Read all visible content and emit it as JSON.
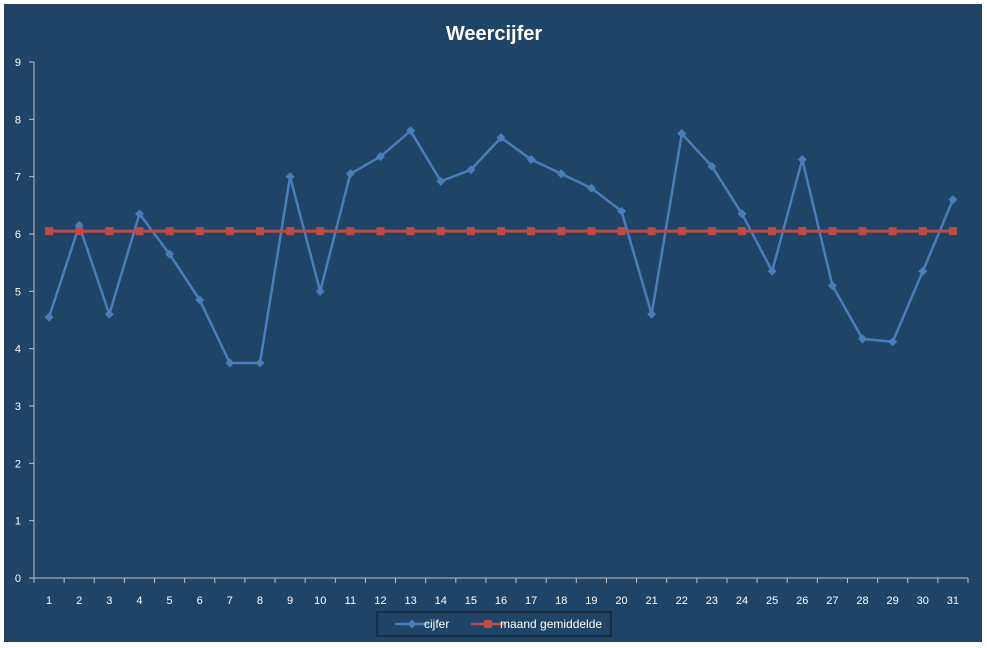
{
  "chart_data": {
    "type": "line",
    "title": "Weercijfer",
    "xlabel": "",
    "ylabel": "",
    "categories": [
      "1",
      "2",
      "3",
      "4",
      "5",
      "6",
      "7",
      "8",
      "9",
      "10",
      "11",
      "12",
      "13",
      "14",
      "15",
      "16",
      "17",
      "18",
      "19",
      "20",
      "21",
      "22",
      "23",
      "24",
      "25",
      "26",
      "27",
      "28",
      "29",
      "30",
      "31"
    ],
    "ylim": [
      0,
      9
    ],
    "yticks": [
      "0",
      "1",
      "2",
      "3",
      "4",
      "5",
      "6",
      "7",
      "8",
      "9"
    ],
    "grid": false,
    "legend_position": "bottom",
    "series": [
      {
        "name": "cijfer",
        "color": "#4a7ebb",
        "marker": "diamond",
        "values": [
          4.55,
          6.15,
          4.6,
          6.35,
          5.65,
          4.85,
          3.75,
          3.75,
          7.0,
          5.0,
          7.05,
          7.35,
          7.8,
          6.92,
          7.12,
          7.68,
          7.3,
          7.05,
          6.8,
          6.4,
          4.6,
          7.75,
          7.18,
          6.35,
          5.35,
          7.3,
          5.1,
          4.17,
          4.12,
          5.35,
          6.6
        ]
      },
      {
        "name": "maand gemiddelde",
        "color": "#be4b48",
        "marker": "square",
        "values": [
          6.05,
          6.05,
          6.05,
          6.05,
          6.05,
          6.05,
          6.05,
          6.05,
          6.05,
          6.05,
          6.05,
          6.05,
          6.05,
          6.05,
          6.05,
          6.05,
          6.05,
          6.05,
          6.05,
          6.05,
          6.05,
          6.05,
          6.05,
          6.05,
          6.05,
          6.05,
          6.05,
          6.05,
          6.05,
          6.05,
          6.05
        ]
      }
    ],
    "background_color": "#1f4466",
    "axis_color": "#c0c0c0"
  }
}
